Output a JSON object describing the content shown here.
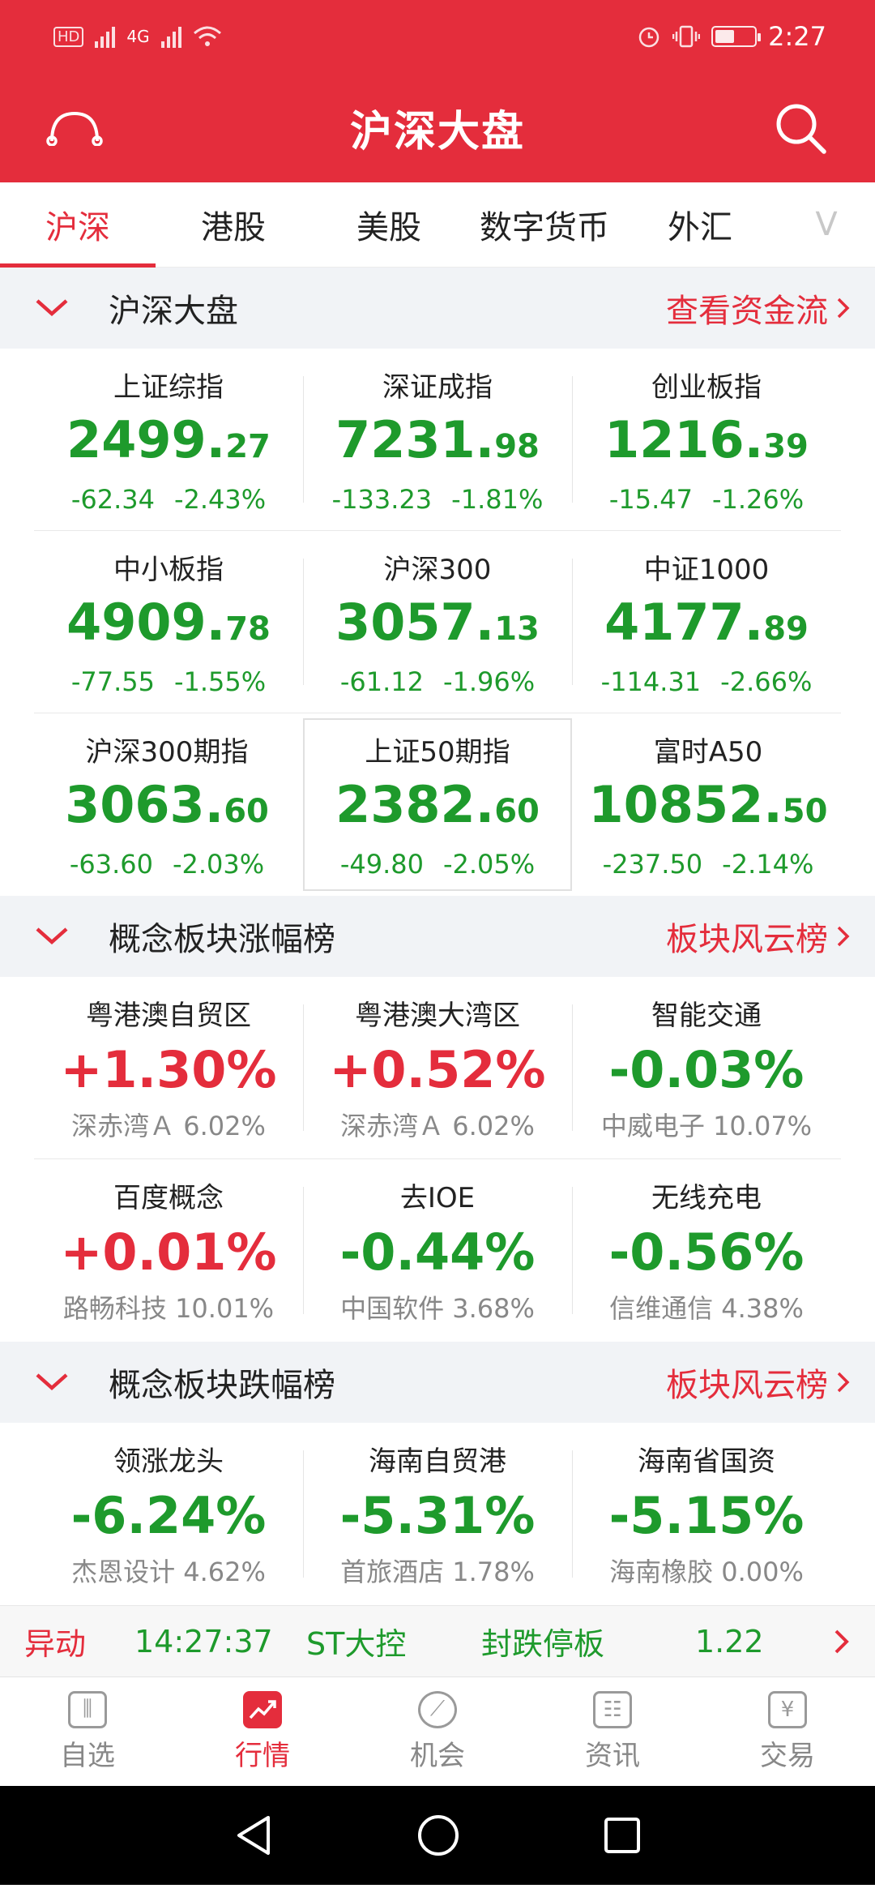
{
  "status": {
    "time": "2:27",
    "hd": "HD",
    "net": "4G"
  },
  "header": {
    "title": "沪深大盘"
  },
  "tabs": [
    {
      "label": "沪深"
    },
    {
      "label": "港股"
    },
    {
      "label": "美股"
    },
    {
      "label": "数字货币"
    },
    {
      "label": "外汇"
    },
    {
      "label": "V"
    }
  ],
  "sec1": {
    "title": "沪深大盘",
    "link": "查看资金流"
  },
  "indices": [
    {
      "name": "上证综指",
      "int": "2499.",
      "dec": "27",
      "chg": "-62.34",
      "pct": "-2.43%"
    },
    {
      "name": "深证成指",
      "int": "7231.",
      "dec": "98",
      "chg": "-133.23",
      "pct": "-1.81%"
    },
    {
      "name": "创业板指",
      "int": "1216.",
      "dec": "39",
      "chg": "-15.47",
      "pct": "-1.26%"
    },
    {
      "name": "中小板指",
      "int": "4909.",
      "dec": "78",
      "chg": "-77.55",
      "pct": "-1.55%"
    },
    {
      "name": "沪深300",
      "int": "3057.",
      "dec": "13",
      "chg": "-61.12",
      "pct": "-1.96%"
    },
    {
      "name": "中证1000",
      "int": "4177.",
      "dec": "89",
      "chg": "-114.31",
      "pct": "-2.66%"
    },
    {
      "name": "沪深300期指",
      "int": "3063.",
      "dec": "60",
      "chg": "-63.60",
      "pct": "-2.03%"
    },
    {
      "name": "上证50期指",
      "int": "2382.",
      "dec": "60",
      "chg": "-49.80",
      "pct": "-2.05%"
    },
    {
      "name": "富时A50",
      "int": "10852.",
      "dec": "50",
      "chg": "-237.50",
      "pct": "-2.14%"
    }
  ],
  "sec2": {
    "title": "概念板块涨幅榜",
    "link": "板块风云榜"
  },
  "gainers": [
    {
      "name": "粤港澳自贸区",
      "pct": "+1.30%",
      "lead": "深赤湾Ａ 6.02%"
    },
    {
      "name": "粤港澳大湾区",
      "pct": "+0.52%",
      "lead": "深赤湾Ａ 6.02%"
    },
    {
      "name": "智能交通",
      "pct": "-0.03%",
      "lead": "中威电子 10.07%"
    },
    {
      "name": "百度概念",
      "pct": "+0.01%",
      "lead": "路畅科技 10.01%"
    },
    {
      "name": "去IOE",
      "pct": "-0.44%",
      "lead": "中国软件 3.68%"
    },
    {
      "name": "无线充电",
      "pct": "-0.56%",
      "lead": "信维通信 4.38%"
    }
  ],
  "sec3": {
    "title": "概念板块跌幅榜",
    "link": "板块风云榜"
  },
  "losers": [
    {
      "name": "领涨龙头",
      "pct": "-6.24%",
      "lead": "杰恩设计 4.62%"
    },
    {
      "name": "海南自贸港",
      "pct": "-5.31%",
      "lead": "首旅酒店 1.78%"
    },
    {
      "name": "海南省国资",
      "pct": "-5.15%",
      "lead": "海南橡胶 0.00%"
    }
  ],
  "ticker": {
    "label": "异动",
    "time": "14:27:37",
    "name": "ST大控",
    "event": "封跌停板",
    "value": "1.22"
  },
  "nav": [
    {
      "label": "自选",
      "glyph": "⫼"
    },
    {
      "label": "行情",
      "glyph": "↗"
    },
    {
      "label": "机会",
      "glyph": "⟋"
    },
    {
      "label": "资讯",
      "glyph": "☷"
    },
    {
      "label": "交易",
      "glyph": "¥"
    }
  ],
  "colors": {
    "brand_red": "#e42d3c",
    "down_green": "#1e9a2c"
  }
}
